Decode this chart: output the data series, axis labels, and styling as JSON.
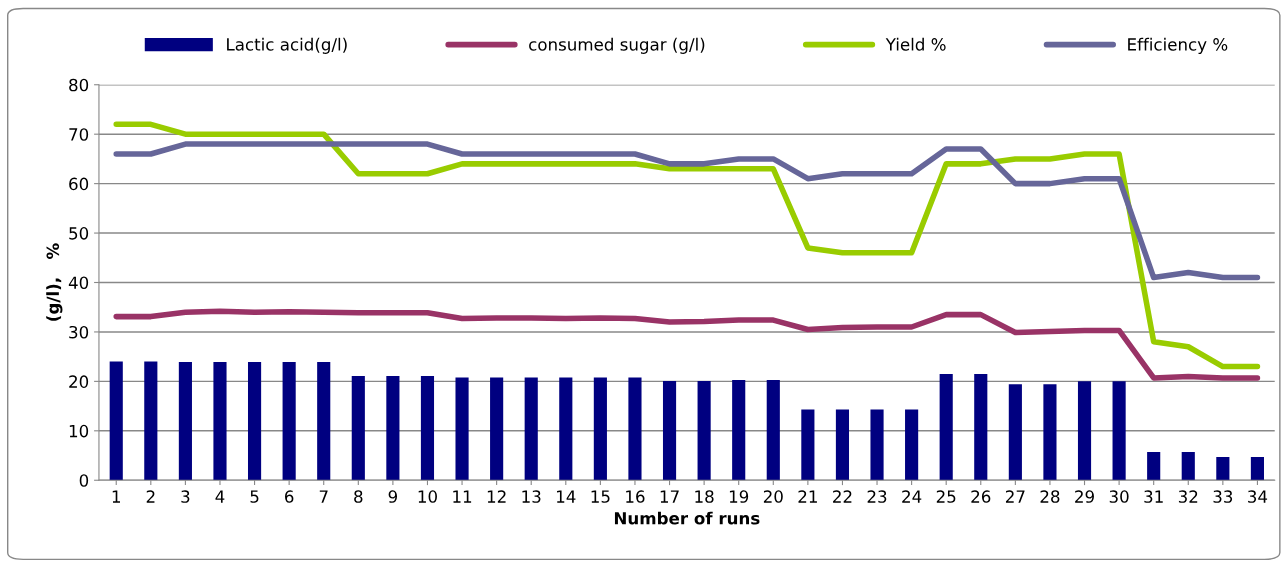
{
  "chart_data": {
    "type": "bar",
    "xlabel": "Number of runs",
    "ylabel": "(g/l),   %",
    "categories": [
      "1",
      "2",
      "3",
      "4",
      "5",
      "6",
      "7",
      "8",
      "9",
      "10",
      "11",
      "12",
      "13",
      "14",
      "15",
      "16",
      "17",
      "18",
      "19",
      "20",
      "21",
      "22",
      "23",
      "24",
      "25",
      "26",
      "27",
      "28",
      "29",
      "30",
      "31",
      "32",
      "33",
      "34"
    ],
    "series": [
      {
        "name": "Lactic acid(g/l)",
        "color": "#000080",
        "values": [
          24,
          24,
          23.9,
          23.9,
          23.9,
          23.9,
          23.9,
          21.1,
          21.1,
          21.1,
          20.8,
          20.8,
          20.8,
          20.8,
          20.8,
          20.8,
          20.1,
          20.1,
          20.3,
          20.3,
          14.3,
          14.3,
          14.3,
          14.3,
          21.5,
          21.5,
          19.4,
          19.4,
          20,
          20,
          5.7,
          5.7,
          4.7,
          4.7
        ]
      },
      {
        "name": "consumed sugar (g/l)",
        "type": "line",
        "color": "#993366",
        "values": [
          33.1,
          33.1,
          34,
          34.2,
          34,
          34.1,
          34,
          33.9,
          33.9,
          33.9,
          32.7,
          32.8,
          32.8,
          32.7,
          32.8,
          32.7,
          32,
          32.1,
          32.4,
          32.4,
          30.5,
          30.9,
          31,
          31,
          33.5,
          33.5,
          29.9,
          30.1,
          30.3,
          30.3,
          20.7,
          21,
          20.7,
          20.7
        ]
      },
      {
        "name": "Yield %",
        "type": "line",
        "color": "#99cc00",
        "values": [
          72,
          72,
          70,
          70,
          70,
          70,
          70,
          62,
          62,
          62,
          64,
          64,
          64,
          64,
          64,
          64,
          63,
          63,
          63,
          63,
          47,
          46,
          46,
          46,
          64,
          64,
          65,
          65,
          66,
          66,
          28,
          27,
          23,
          23
        ]
      },
      {
        "name": "Efficiency %",
        "type": "line",
        "color": "#666699",
        "values": [
          66,
          66,
          68,
          68,
          68,
          68,
          68,
          68,
          68,
          68,
          66,
          66,
          66,
          66,
          66,
          66,
          64,
          64,
          65,
          65,
          61,
          62,
          62,
          62,
          67,
          67,
          60,
          60,
          61,
          61,
          41,
          42,
          41,
          41
        ]
      }
    ],
    "ylim": [
      0,
      80
    ],
    "yticks": [
      0,
      10,
      20,
      30,
      40,
      50,
      60,
      70,
      80
    ],
    "grid": "y",
    "legend": "top",
    "line_style": "solid",
    "marker": "none"
  }
}
